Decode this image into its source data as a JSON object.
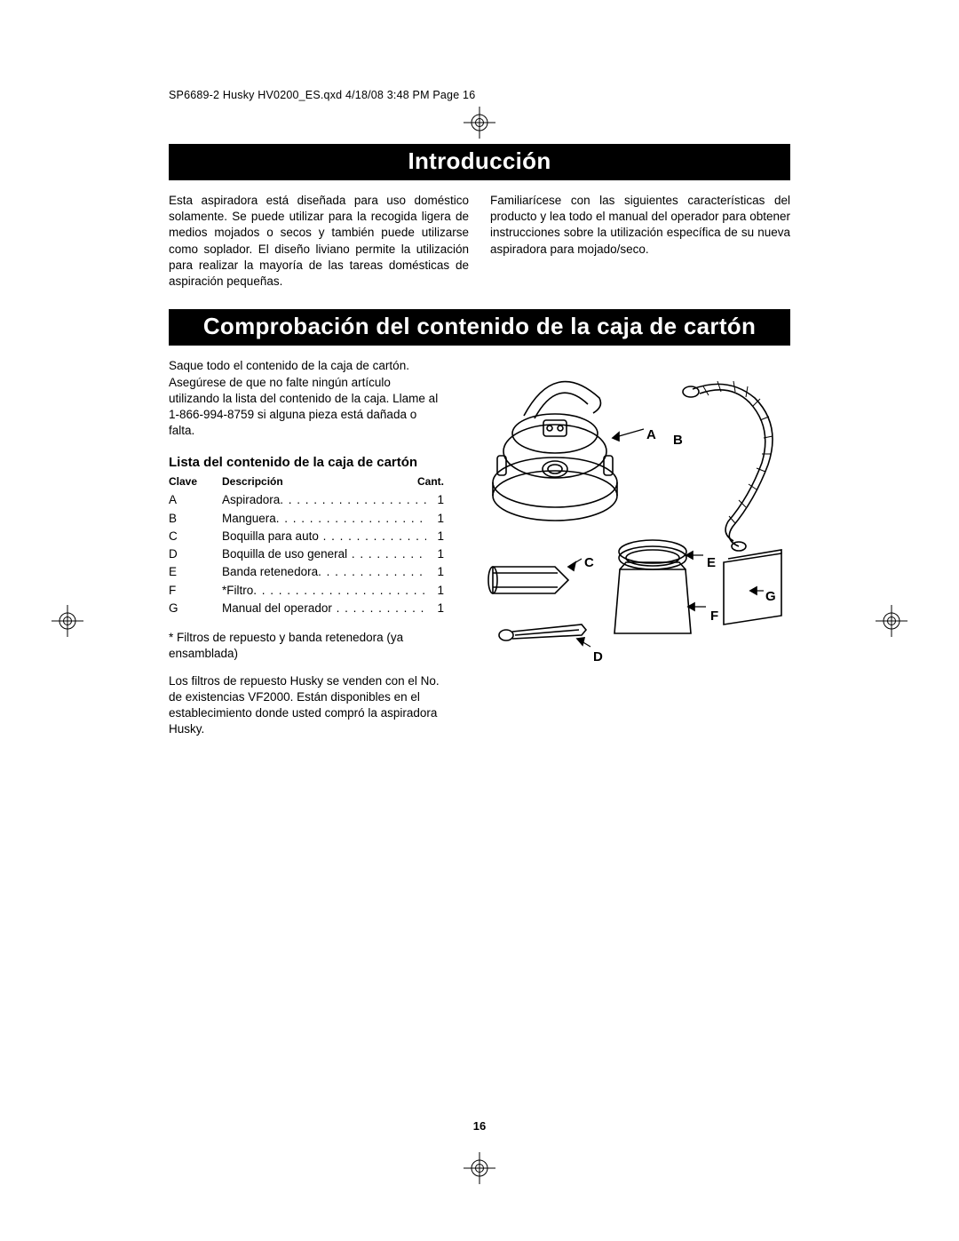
{
  "header_line": "SP6689-2 Husky HV0200_ES.qxd  4/18/08  3:48 PM  Page 16",
  "section1_title": "Introducción",
  "intro_left": "Esta aspiradora está diseñada para uso doméstico solamente. Se puede utilizar para la recogida ligera de medios mojados o secos y también puede utilizarse como soplador. El diseño liviano permite la utilización para realizar la mayoría de las tareas domésticas de aspiración pequeñas.",
  "intro_right": "Familiarícese con las siguientes características del producto y lea todo el manual del operador para obtener instrucciones sobre la utilización específica de su nueva aspiradora para mojado/seco.",
  "section2_title": "Comprobación del contenido de la caja de cartón",
  "check_text": "Saque todo el contenido de la caja de cartón. Asegúrese de que no falte ningún artículo utilizando la lista del contenido de la caja. Llame al 1-866-994-8759 si alguna pieza está dañada o falta.",
  "list_heading": "Lista del contenido de la caja de cartón",
  "table": {
    "head_key": "Clave",
    "head_desc": "Descripción",
    "head_qty": "Cant.",
    "rows": [
      {
        "key": "A",
        "desc": "Aspiradora",
        "dots": ". . . . . . . . . . . . . . . . . . . . .",
        "qty": "1"
      },
      {
        "key": "B",
        "desc": "Manguera",
        "dots": ". . . . . . . . . . . . . . . . . . . . . .",
        "qty": "1"
      },
      {
        "key": "C",
        "desc": "Boquilla para auto",
        "dots": " . . . . . . . . . . . . . .",
        "qty": "1"
      },
      {
        "key": "D",
        "desc": "Boquilla de uso general",
        "dots": " . . . . . . . . . .",
        "qty": "1"
      },
      {
        "key": "E",
        "desc": "Banda retenedora",
        "dots": ". . . . . . . . . . . . . . .",
        "qty": "1"
      },
      {
        "key": "F",
        "desc": "*Filtro",
        "dots": ". . . . . . . . . . . . . . . . . . . . . . . . .",
        "qty": "1"
      },
      {
        "key": "G",
        "desc": "Manual del operador",
        "dots": " . . . . . . . . . . . .",
        "qty": "1"
      }
    ]
  },
  "footnote1": "* Filtros de repuesto y banda retenedora (ya ensamblada)",
  "footnote2": "Los filtros de repuesto Husky se venden con el No. de existencias VF2000. Están disponibles en el establecimiento donde usted compró la aspiradora Husky.",
  "labels": {
    "A": "A",
    "B": "B",
    "C": "C",
    "D": "D",
    "E": "E",
    "F": "F",
    "G": "G"
  },
  "page_number": "16",
  "colors": {
    "black": "#000000",
    "white": "#ffffff"
  }
}
